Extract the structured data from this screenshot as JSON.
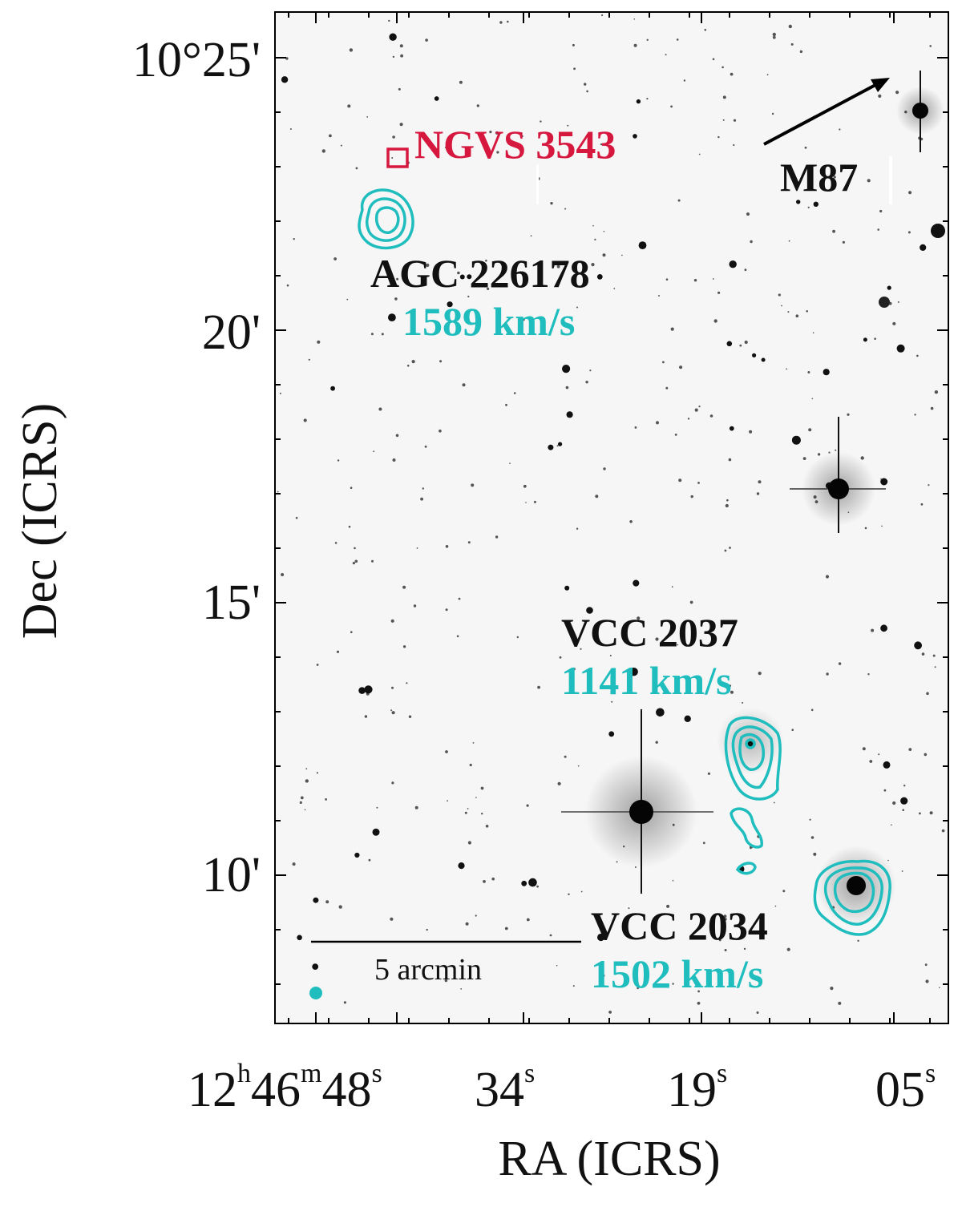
{
  "figure": {
    "axes": {
      "x_title": "RA (ICRS)",
      "y_title": "Dec (ICRS)",
      "x_ticks": [
        {
          "h": "12",
          "h_unit": "h",
          "m": "46",
          "m_unit": "m",
          "s": "48",
          "s_unit": "s"
        },
        {
          "s": "34",
          "s_unit": "s"
        },
        {
          "s": "19",
          "s_unit": "s"
        },
        {
          "s": "05",
          "s_unit": "s"
        }
      ],
      "y_ticks": [
        "10°25'",
        "20'",
        "15'",
        "10'"
      ]
    },
    "labels": {
      "ngvs": "NGVS 3543",
      "m87": "M87",
      "agc_name": "AGC 226178",
      "agc_vel": "1589 km/s",
      "vcc2037_name": "VCC 2037",
      "vcc2037_vel": "1141 km/s",
      "vcc2034_name": "VCC 2034",
      "vcc2034_vel": "1502 km/s"
    },
    "scale_bar": {
      "label": "5 arcmin",
      "length_arcmin": 5
    },
    "colors": {
      "contour": "#1fbdbd",
      "ngvs_marker": "#d6183f",
      "text": "#111111",
      "background": "#f6f6f6"
    }
  }
}
